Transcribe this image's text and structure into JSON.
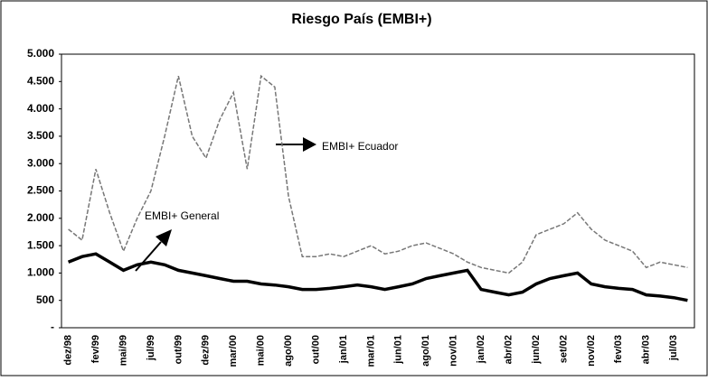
{
  "chart_data": {
    "type": "line",
    "title": "Riesgo País (EMBI+)",
    "categories": [
      "dez/98",
      null,
      "fev/99",
      null,
      "mai/99",
      null,
      "jul/99",
      null,
      "out/99",
      null,
      "dez/99",
      null,
      "mar/00",
      null,
      "mai/00",
      null,
      "ago/00",
      null,
      "out/00",
      null,
      "jan/01",
      null,
      "mar/01",
      null,
      "jun/01",
      null,
      "ago/01",
      null,
      "nov/01",
      null,
      "jan/02",
      null,
      "abr/02",
      null,
      "jun/02",
      null,
      "set/02",
      null,
      "nov/02",
      null,
      "fev/03",
      null,
      "abr/03",
      null,
      "jul/03",
      null
    ],
    "series": [
      {
        "name": "EMBI+ Ecuador",
        "color": "#777777",
        "values": [
          1800,
          1600,
          2900,
          2100,
          1400,
          2000,
          2500,
          3500,
          4600,
          3500,
          3100,
          3800,
          4300,
          2900,
          4600,
          4400,
          2400,
          1300,
          1300,
          1350,
          1300,
          1400,
          1500,
          1350,
          1400,
          1500,
          1550,
          1450,
          1350,
          1200,
          1100,
          1050,
          1000,
          1200,
          1700,
          1800,
          1900,
          2100,
          1800,
          1600,
          1500,
          1400,
          1100,
          1200,
          1150,
          1100
        ]
      },
      {
        "name": "EMBI+ General",
        "color": "#000000",
        "values": [
          1200,
          1300,
          1350,
          1200,
          1050,
          1150,
          1200,
          1150,
          1050,
          1000,
          950,
          900,
          850,
          850,
          800,
          780,
          750,
          700,
          700,
          720,
          750,
          780,
          750,
          700,
          750,
          800,
          900,
          950,
          1000,
          1050,
          700,
          650,
          600,
          650,
          800,
          900,
          950,
          1000,
          800,
          750,
          720,
          700,
          600,
          580,
          550,
          500
        ]
      }
    ],
    "ylim": [
      0,
      5000
    ],
    "yticks": [
      {
        "value": 0,
        "label": "-"
      },
      500,
      {
        "value": 1000,
        "label": "1.000"
      },
      {
        "value": 1500,
        "label": "1.500"
      },
      {
        "value": 2000,
        "label": "2.000"
      },
      {
        "value": 2500,
        "label": "2.500"
      },
      {
        "value": 3000,
        "label": "3.000"
      },
      {
        "value": 3500,
        "label": "3.500"
      },
      {
        "value": 4000,
        "label": "4.000"
      },
      {
        "value": 4500,
        "label": "4.500"
      },
      {
        "value": 5000,
        "label": "5.000"
      }
    ]
  }
}
